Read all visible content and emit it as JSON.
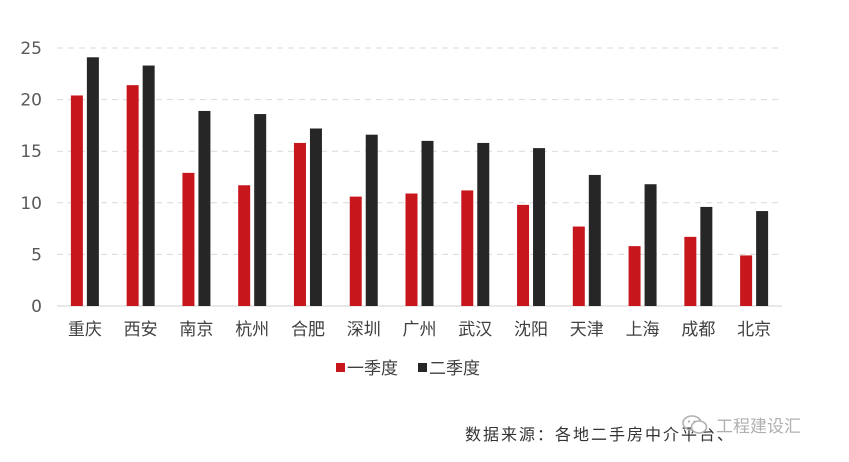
{
  "chart_data": {
    "type": "bar",
    "categories": [
      "重庆",
      "西安",
      "南京",
      "杭州",
      "合肥",
      "深圳",
      "广州",
      "武汉",
      "沈阳",
      "天津",
      "上海",
      "成都",
      "北京"
    ],
    "series": [
      {
        "name": "一季度",
        "color": "#c8161d",
        "values": [
          20.4,
          21.4,
          12.9,
          11.7,
          15.8,
          10.6,
          10.9,
          11.2,
          9.8,
          7.7,
          5.8,
          6.7,
          4.9
        ]
      },
      {
        "name": "二季度",
        "color": "#262626",
        "values": [
          24.1,
          23.3,
          18.9,
          18.6,
          17.2,
          16.6,
          16.0,
          15.8,
          15.3,
          12.7,
          11.8,
          9.6,
          9.2
        ]
      }
    ],
    "ylim": [
      0,
      25
    ],
    "yticks": [
      0,
      5,
      10,
      15,
      20,
      25
    ],
    "grid": true,
    "legend_position": "bottom"
  },
  "footer": {
    "source": "数据来源：各地二手房中介平台、",
    "watermark": "工程建设汇"
  }
}
